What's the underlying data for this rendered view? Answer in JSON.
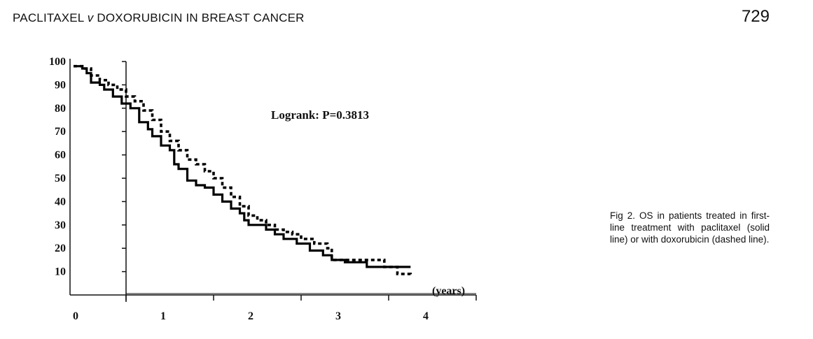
{
  "header": {
    "running_title_part1": "PACLITAXEL ",
    "running_title_v": "v",
    "running_title_part2": " DOXORUBICIN IN BREAST CANCER",
    "page_number": "729"
  },
  "figure": {
    "caption_label": "Fig 2.",
    "caption_text": "OS in patients treated in first-line treatment with paclitaxel (solid line) or with doxorubicin (dashed line)."
  },
  "chart_data": {
    "type": "line",
    "title": "",
    "annotation": "Logrank: P=0.3813",
    "xlabel": "(years)",
    "ylabel": "",
    "x_ticks": [
      "0",
      "1",
      "2",
      "3",
      "4"
    ],
    "y_ticks": [
      "100",
      "90",
      "80",
      "70",
      "60",
      "50",
      "40",
      "30",
      "20",
      "10"
    ],
    "xlim": [
      0,
      4.5
    ],
    "ylim": [
      0,
      100
    ],
    "series": [
      {
        "style": "solid",
        "points": [
          [
            0,
            98
          ],
          [
            0.1,
            97
          ],
          [
            0.15,
            95
          ],
          [
            0.2,
            91
          ],
          [
            0.3,
            90
          ],
          [
            0.35,
            88
          ],
          [
            0.45,
            85
          ],
          [
            0.55,
            82
          ],
          [
            0.65,
            80
          ],
          [
            0.75,
            74
          ],
          [
            0.85,
            71
          ],
          [
            0.9,
            68
          ],
          [
            1.0,
            64
          ],
          [
            1.1,
            62
          ],
          [
            1.15,
            56
          ],
          [
            1.2,
            54
          ],
          [
            1.3,
            49
          ],
          [
            1.4,
            47
          ],
          [
            1.5,
            46
          ],
          [
            1.6,
            43
          ],
          [
            1.7,
            40
          ],
          [
            1.8,
            37
          ],
          [
            1.9,
            35
          ],
          [
            1.95,
            32
          ],
          [
            2.0,
            30
          ],
          [
            2.2,
            28
          ],
          [
            2.3,
            26
          ],
          [
            2.4,
            24
          ],
          [
            2.55,
            22
          ],
          [
            2.7,
            19
          ],
          [
            2.85,
            17
          ],
          [
            2.95,
            15
          ],
          [
            3.1,
            14
          ],
          [
            3.35,
            14
          ],
          [
            3.35,
            12
          ],
          [
            3.6,
            12
          ],
          [
            3.85,
            12
          ]
        ]
      },
      {
        "style": "dashed",
        "points": [
          [
            0,
            98
          ],
          [
            0.1,
            97
          ],
          [
            0.2,
            94
          ],
          [
            0.3,
            92
          ],
          [
            0.4,
            90
          ],
          [
            0.5,
            88
          ],
          [
            0.6,
            85
          ],
          [
            0.7,
            83
          ],
          [
            0.8,
            79
          ],
          [
            0.9,
            75
          ],
          [
            1.0,
            70
          ],
          [
            1.1,
            66
          ],
          [
            1.2,
            62
          ],
          [
            1.3,
            58
          ],
          [
            1.4,
            56
          ],
          [
            1.5,
            53
          ],
          [
            1.6,
            50
          ],
          [
            1.7,
            46
          ],
          [
            1.8,
            42
          ],
          [
            1.9,
            38
          ],
          [
            2.0,
            34
          ],
          [
            2.1,
            32
          ],
          [
            2.2,
            30
          ],
          [
            2.3,
            28
          ],
          [
            2.4,
            27
          ],
          [
            2.5,
            26
          ],
          [
            2.6,
            24
          ],
          [
            2.75,
            22
          ],
          [
            2.9,
            20
          ],
          [
            2.95,
            15
          ],
          [
            3.1,
            15
          ],
          [
            3.45,
            15
          ],
          [
            3.55,
            12
          ],
          [
            3.7,
            9
          ],
          [
            3.85,
            8
          ]
        ]
      }
    ]
  }
}
